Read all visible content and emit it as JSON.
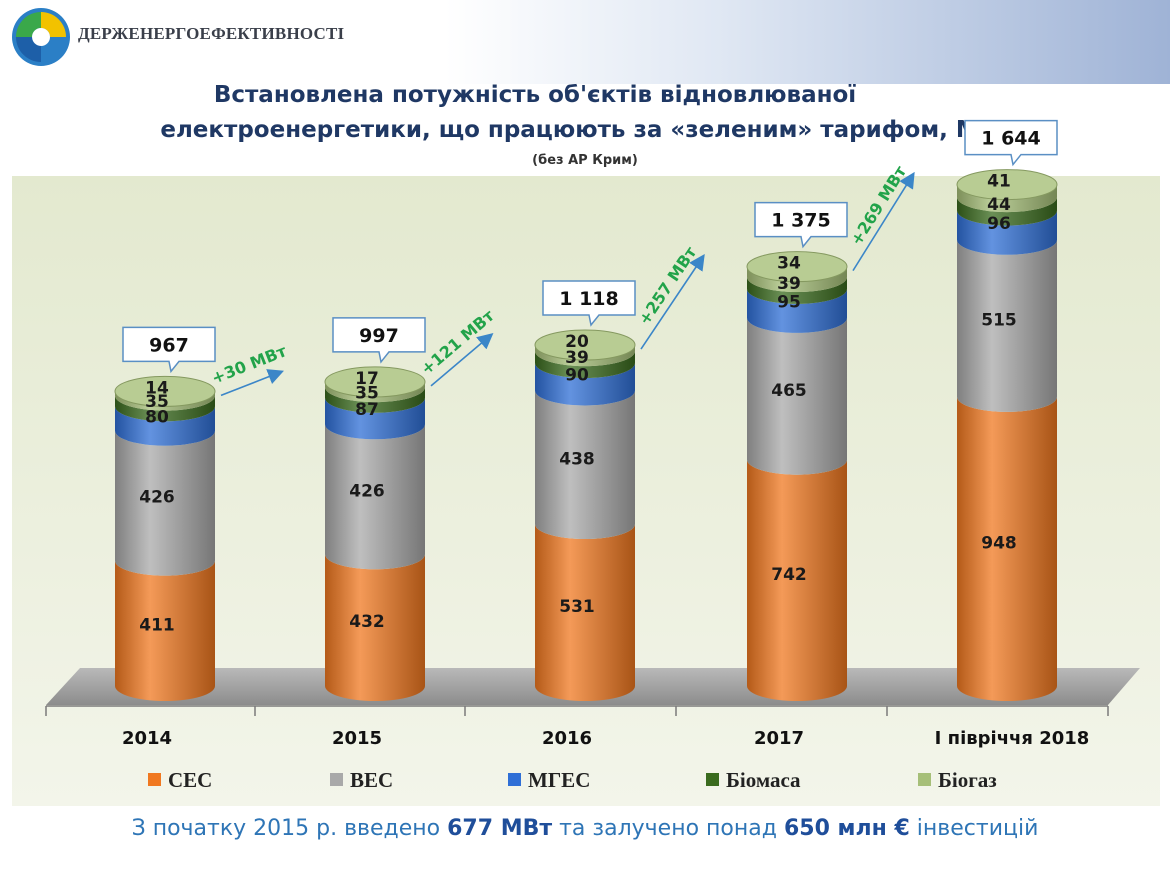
{
  "header": {
    "org_name": "ДЕРЖЕНЕРГОЕФЕКТИВНОСТІ",
    "title_line1": "Встановлена потужність об'єктів відновлюваної",
    "title_line2": "електроенергетики, що працюють за «зеленим» тарифом, МВт",
    "subtitle": "(без АР Крим)"
  },
  "footer": {
    "part1": "З початку 2015 р. введено ",
    "bold1": "677 МВт",
    "part2": " та залучено понад ",
    "bold2": "650 млн €",
    "part3": " інвестицій"
  },
  "chart_data": {
    "type": "bar",
    "stacked": true,
    "categories": [
      "2014",
      "2015",
      "2016",
      "2017",
      "І півріччя 2018"
    ],
    "series": [
      {
        "name": "СЕС",
        "color": "#f07820",
        "values": [
          411,
          432,
          531,
          742,
          948
        ]
      },
      {
        "name": "ВЕС",
        "color": "#a9a9a9",
        "values": [
          426,
          426,
          438,
          465,
          515
        ]
      },
      {
        "name": "МГЕС",
        "color": "#2f6fd6",
        "values": [
          80,
          87,
          90,
          95,
          96
        ]
      },
      {
        "name": "Біомаса",
        "color": "#3a6b1e",
        "values": [
          35,
          35,
          39,
          39,
          44
        ]
      },
      {
        "name": "Біогаз",
        "color": "#a6bf78",
        "values": [
          14,
          17,
          20,
          34,
          41
        ]
      }
    ],
    "totals": [
      "967",
      "997",
      "1 118",
      "1 375",
      "1 644"
    ],
    "increments": [
      "+30 МВт",
      "+121 МВт",
      "+257 МВт",
      "+269 МВт"
    ],
    "legend_position": "bottom"
  }
}
